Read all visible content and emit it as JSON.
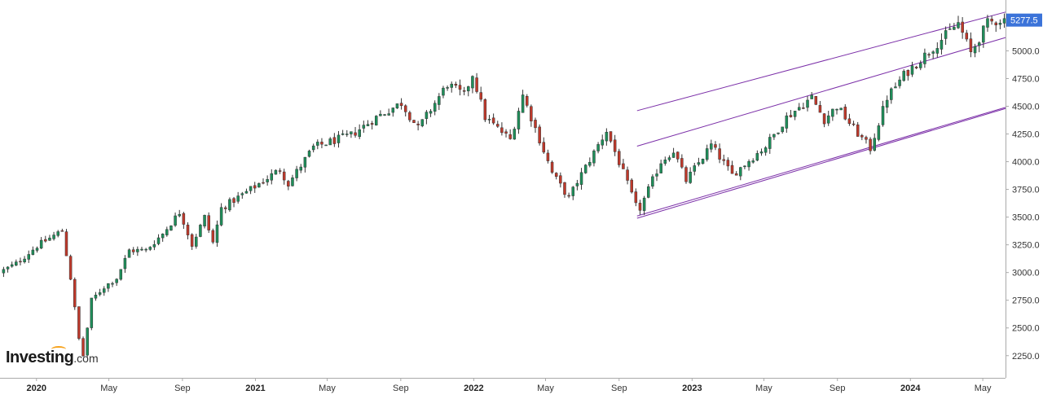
{
  "chart_data": {
    "type": "candlestick",
    "title": "",
    "xlabel": "",
    "ylabel": "",
    "ylim": [
      2050,
      5400
    ],
    "xlim": [
      "2019-11-01",
      "2024-06-08"
    ],
    "y_ticks": [
      "2250.0",
      "2500.0",
      "2750.0",
      "3000.0",
      "3250.0",
      "3500.0",
      "3750.0",
      "4000.0",
      "4250.0",
      "4500.0",
      "4750.0",
      "5000.0"
    ],
    "x_ticks": [
      {
        "label": "2020",
        "date": "2020-01-01",
        "year": true
      },
      {
        "label": "May",
        "date": "2020-05-01",
        "year": false
      },
      {
        "label": "Sep",
        "date": "2020-09-01",
        "year": false
      },
      {
        "label": "2021",
        "date": "2021-01-01",
        "year": true
      },
      {
        "label": "May",
        "date": "2021-05-01",
        "year": false
      },
      {
        "label": "Sep",
        "date": "2021-09-01",
        "year": false
      },
      {
        "label": "2022",
        "date": "2022-01-01",
        "year": true
      },
      {
        "label": "May",
        "date": "2022-05-01",
        "year": false
      },
      {
        "label": "Sep",
        "date": "2022-09-01",
        "year": false
      },
      {
        "label": "2023",
        "date": "2023-01-01",
        "year": true
      },
      {
        "label": "May",
        "date": "2023-05-01",
        "year": false
      },
      {
        "label": "Sep",
        "date": "2023-09-01",
        "year": false
      },
      {
        "label": "2024",
        "date": "2024-01-01",
        "year": true
      },
      {
        "label": "May",
        "date": "2024-05-01",
        "year": false
      }
    ],
    "last_price": {
      "label": "5277.5",
      "value": 5277.5
    },
    "colors": {
      "up": "#1e8f5a",
      "down": "#c0392b",
      "trendline": "#7b2fa8",
      "last_price_bg": "#3b73d9",
      "grid": "none",
      "axis": "#aaaaaa"
    },
    "trendlines": [
      {
        "x1": "2022-10-01",
        "y1": 4460,
        "x2": "2024-06-08",
        "y2": 5350
      },
      {
        "x1": "2022-10-01",
        "y1": 4140,
        "x2": "2024-06-08",
        "y2": 5120
      },
      {
        "x1": "2022-10-01",
        "y1": 3510,
        "x2": "2024-06-08",
        "y2": 4490
      },
      {
        "x1": "2022-10-01",
        "y1": 3490,
        "x2": "2024-06-08",
        "y2": 4480
      }
    ],
    "anchors": [
      [
        "2019-11-04",
        3000
      ],
      [
        "2019-12-02",
        3080
      ],
      [
        "2020-01-06",
        3240
      ],
      [
        "2020-02-17",
        3380
      ],
      [
        "2020-03-02",
        2950
      ],
      [
        "2020-03-16",
        2400
      ],
      [
        "2020-03-23",
        2250
      ],
      [
        "2020-04-06",
        2750
      ],
      [
        "2020-04-27",
        2870
      ],
      [
        "2020-05-18",
        2950
      ],
      [
        "2020-06-08",
        3200
      ],
      [
        "2020-07-06",
        3200
      ],
      [
        "2020-08-03",
        3350
      ],
      [
        "2020-09-01",
        3550
      ],
      [
        "2020-09-21",
        3250
      ],
      [
        "2020-10-12",
        3500
      ],
      [
        "2020-10-26",
        3270
      ],
      [
        "2020-11-09",
        3580
      ],
      [
        "2020-12-28",
        3750
      ],
      [
        "2021-02-15",
        3930
      ],
      [
        "2021-03-01",
        3800
      ],
      [
        "2021-04-12",
        4130
      ],
      [
        "2021-05-10",
        4180
      ],
      [
        "2021-06-14",
        4240
      ],
      [
        "2021-07-26",
        4400
      ],
      [
        "2021-09-06",
        4530
      ],
      [
        "2021-10-04",
        4300
      ],
      [
        "2021-11-22",
        4700
      ],
      [
        "2021-12-20",
        4600
      ],
      [
        "2022-01-03",
        4790
      ],
      [
        "2022-01-24",
        4400
      ],
      [
        "2022-03-07",
        4200
      ],
      [
        "2022-03-28",
        4600
      ],
      [
        "2022-04-25",
        4200
      ],
      [
        "2022-05-16",
        3900
      ],
      [
        "2022-06-13",
        3670
      ],
      [
        "2022-06-27",
        3820
      ],
      [
        "2022-08-15",
        4280
      ],
      [
        "2022-09-12",
        3900
      ],
      [
        "2022-10-03",
        3600
      ],
      [
        "2022-10-10",
        3580
      ],
      [
        "2022-11-14",
        4000
      ],
      [
        "2022-12-05",
        4100
      ],
      [
        "2022-12-26",
        3830
      ],
      [
        "2023-02-06",
        4150
      ],
      [
        "2023-03-13",
        3880
      ],
      [
        "2023-05-08",
        4140
      ],
      [
        "2023-06-12",
        4400
      ],
      [
        "2023-07-24",
        4580
      ],
      [
        "2023-08-14",
        4380
      ],
      [
        "2023-09-04",
        4500
      ],
      [
        "2023-10-02",
        4300
      ],
      [
        "2023-10-30",
        4120
      ],
      [
        "2023-11-27",
        4580
      ],
      [
        "2023-12-25",
        4780
      ],
      [
        "2024-02-12",
        5030
      ],
      [
        "2024-03-25",
        5250
      ],
      [
        "2024-04-15",
        4980
      ],
      [
        "2024-05-13",
        5250
      ],
      [
        "2024-06-03",
        5280
      ]
    ]
  },
  "brand": {
    "name": "Investing",
    "suffix": ".com"
  }
}
